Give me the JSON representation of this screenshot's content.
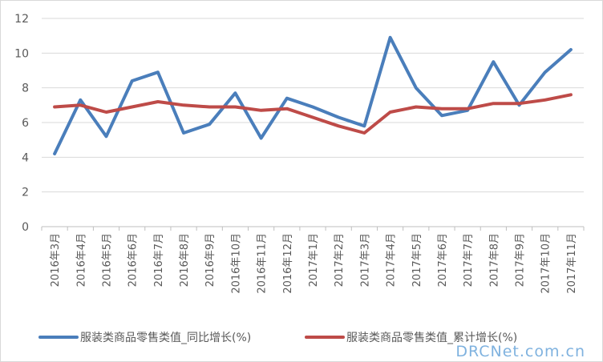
{
  "chart_data": {
    "type": "line",
    "title": "",
    "xlabel": "",
    "ylabel": "",
    "ylim": [
      0,
      12
    ],
    "yticks": [
      0,
      2,
      4,
      6,
      8,
      10,
      12
    ],
    "grid": true,
    "legend_position": "bottom",
    "categories": [
      "2016年3月",
      "2016年4月",
      "2016年5月",
      "2016年6月",
      "2016年7月",
      "2016年8月",
      "2016年9月",
      "2016年10月",
      "2016年11月",
      "2016年12月",
      "2017年1月",
      "2017年2月",
      "2017年3月",
      "2017年4月",
      "2017年5月",
      "2017年6月",
      "2017年7月",
      "2017年8月",
      "2017年9月",
      "2017年10月",
      "2017年11月"
    ],
    "series": [
      {
        "name": "服装类商品零售类值_同比增长(%)",
        "color": "#4a7ebb",
        "values": [
          4.2,
          7.3,
          5.2,
          8.4,
          8.9,
          5.4,
          5.9,
          7.7,
          5.1,
          7.4,
          6.9,
          6.3,
          5.8,
          10.9,
          8.0,
          6.4,
          6.7,
          9.5,
          7.0,
          8.9,
          10.2
        ]
      },
      {
        "name": "服装类商品零售类值_累计增长(%)",
        "color": "#be4b48",
        "values": [
          6.9,
          7.0,
          6.6,
          6.9,
          7.2,
          7.0,
          6.9,
          6.9,
          6.7,
          6.8,
          6.3,
          5.8,
          5.4,
          6.6,
          6.9,
          6.8,
          6.8,
          7.1,
          7.1,
          7.3,
          7.6
        ]
      }
    ]
  },
  "watermark": "DRCNet.com.cn"
}
